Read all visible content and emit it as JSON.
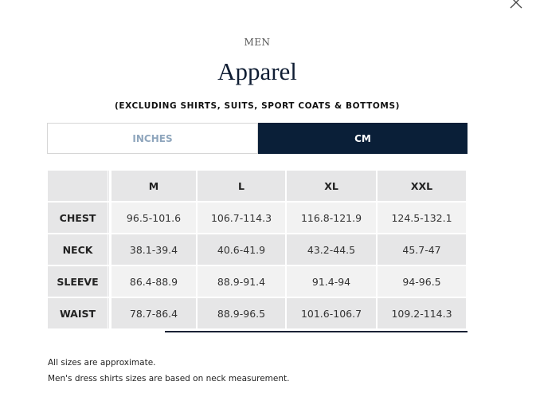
{
  "header": {
    "category": "MEN",
    "title": "Apparel",
    "subtitle": "(EXCLUDING SHIRTS, SUITS, SPORT COATS & BOTTOMS)"
  },
  "units": {
    "options": [
      "INCHES",
      "CM"
    ],
    "selected": "CM"
  },
  "table": {
    "columns": [
      "",
      "M",
      "L",
      "XL",
      "XXL"
    ],
    "rows": [
      {
        "label": "CHEST",
        "values": [
          "96.5-101.6",
          "106.7-114.3",
          "116.8-121.9",
          "124.5-132.1"
        ]
      },
      {
        "label": "NECK",
        "values": [
          "38.1-39.4",
          "40.6-41.9",
          "43.2-44.5",
          "45.7-47"
        ]
      },
      {
        "label": "SLEEVE",
        "values": [
          "86.4-88.9",
          "88.9-91.4",
          "91.4-94",
          "94-96.5"
        ]
      },
      {
        "label": "WAIST",
        "values": [
          "78.7-86.4",
          "88.9-96.5",
          "101.6-106.7",
          "109.2-114.3"
        ]
      }
    ]
  },
  "notes": [
    "All sizes are approximate.",
    "Men's dress shirts sizes are based on neck measurement."
  ],
  "colors": {
    "accent": "#0a1f38",
    "inactive_text": "#8fa6bd",
    "cell_dark": "#e6e6e7",
    "cell_light": "#f2f2f2"
  }
}
